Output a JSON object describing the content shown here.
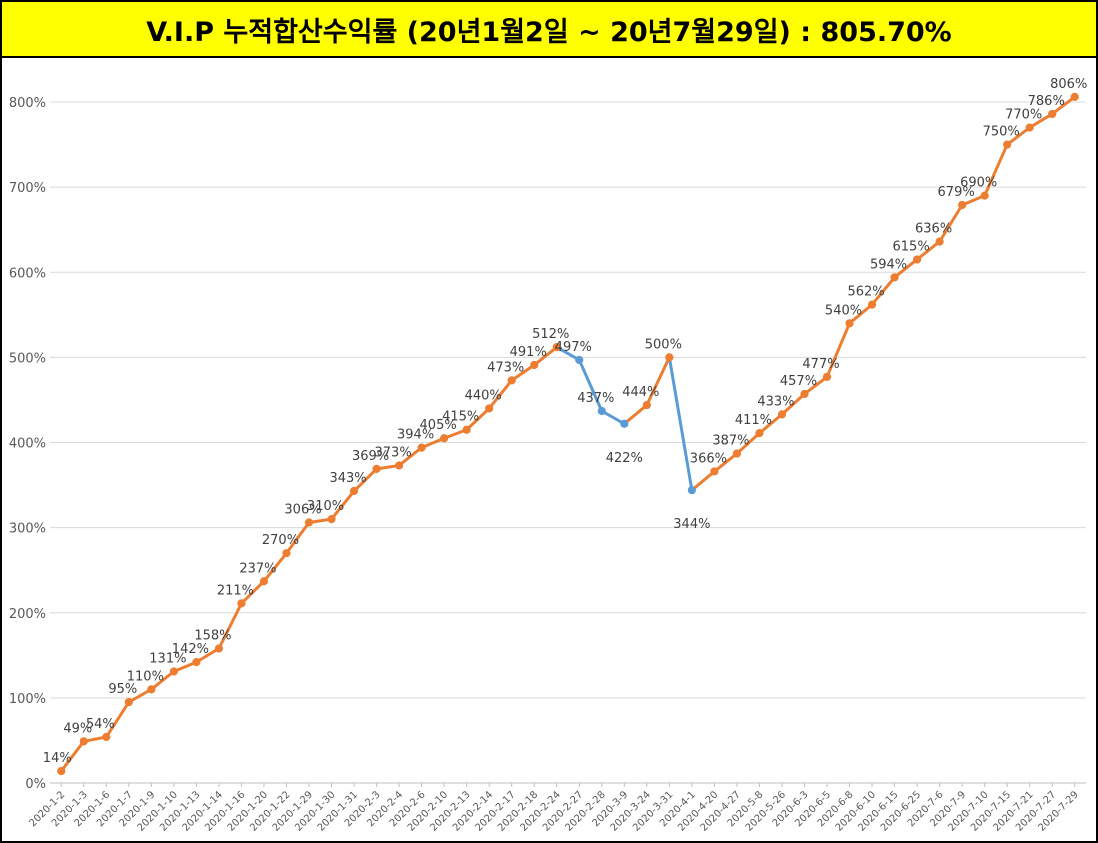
{
  "title": "V.I.P 누적합산수익률 (20년1월2일 ~ 20년7월29일) : 805.70%",
  "colors": {
    "title_background": "#ffff00",
    "gain_line": "#ed7d31",
    "loss_line": "#5b9bd5",
    "grid": "#d9d9d9",
    "label_text": "#404040",
    "tick_text": "#595959"
  },
  "chart_data": {
    "type": "line",
    "title": "V.I.P 누적합산수익률 (20년1월2일 ~ 20년7월29일) : 805.70%",
    "xlabel": "",
    "ylabel": "",
    "ylim": [
      0,
      800
    ],
    "y_ticks": [
      "0%",
      "100%",
      "200%",
      "300%",
      "400%",
      "500%",
      "600%",
      "700%",
      "800%"
    ],
    "grid": true,
    "legend": "none",
    "categories": [
      "2020-1-2",
      "2020-1-3",
      "2020-1-6",
      "2020-1-7",
      "2020-1-9",
      "2020-1-10",
      "2020-1-13",
      "2020-1-14",
      "2020-1-16",
      "2020-1-20",
      "2020-1-22",
      "2020-1-29",
      "2020-1-30",
      "2020-1-31",
      "2020-2-3",
      "2020-2-4",
      "2020-2-6",
      "2020-2-10",
      "2020-2-13",
      "2020-2-14",
      "2020-2-17",
      "2020-2-18",
      "2020-2-24",
      "2020-2-27",
      "2020-2-28",
      "2020-3-9",
      "2020-3-24",
      "2020-3-31",
      "2020-4-1",
      "2020-4-20",
      "2020-4-27",
      "2020-5-8",
      "2020-5-26",
      "2020-6-3",
      "2020-6-5",
      "2020-6-8",
      "2020-6-10",
      "2020-6-15",
      "2020-6-25",
      "2020-7-6",
      "2020-7-9",
      "2020-7-10",
      "2020-7-15",
      "2020-7-21",
      "2020-7-27",
      "2020-7-29"
    ],
    "values": [
      14,
      49,
      54,
      95,
      110,
      131,
      142,
      158,
      211,
      237,
      270,
      306,
      310,
      343,
      369,
      373,
      394,
      405,
      415,
      440,
      473,
      491,
      512,
      497,
      437,
      422,
      444,
      500,
      344,
      366,
      387,
      411,
      433,
      457,
      477,
      540,
      562,
      594,
      615,
      636,
      679,
      690,
      750,
      770,
      786,
      806
    ],
    "data_labels": [
      "14%",
      "49%",
      "54%",
      "95%",
      "110%",
      "131%",
      "142%",
      "158%",
      "211%",
      "237%",
      "270%",
      "306%",
      "310%",
      "343%",
      "369%",
      "373%",
      "394%",
      "405%",
      "415%",
      "440%",
      "473%",
      "491%",
      "512%",
      "497%",
      "437%",
      "422%",
      "444%",
      "500%",
      "344%",
      "366%",
      "387%",
      "411%",
      "433%",
      "457%",
      "477%",
      "540%",
      "562%",
      "594%",
      "615%",
      "636%",
      "679%",
      "690%",
      "750%",
      "770%",
      "786%",
      "806%"
    ],
    "declining_segments": [
      [
        22,
        23
      ],
      [
        23,
        24
      ],
      [
        24,
        25
      ],
      [
        27,
        28
      ]
    ]
  }
}
